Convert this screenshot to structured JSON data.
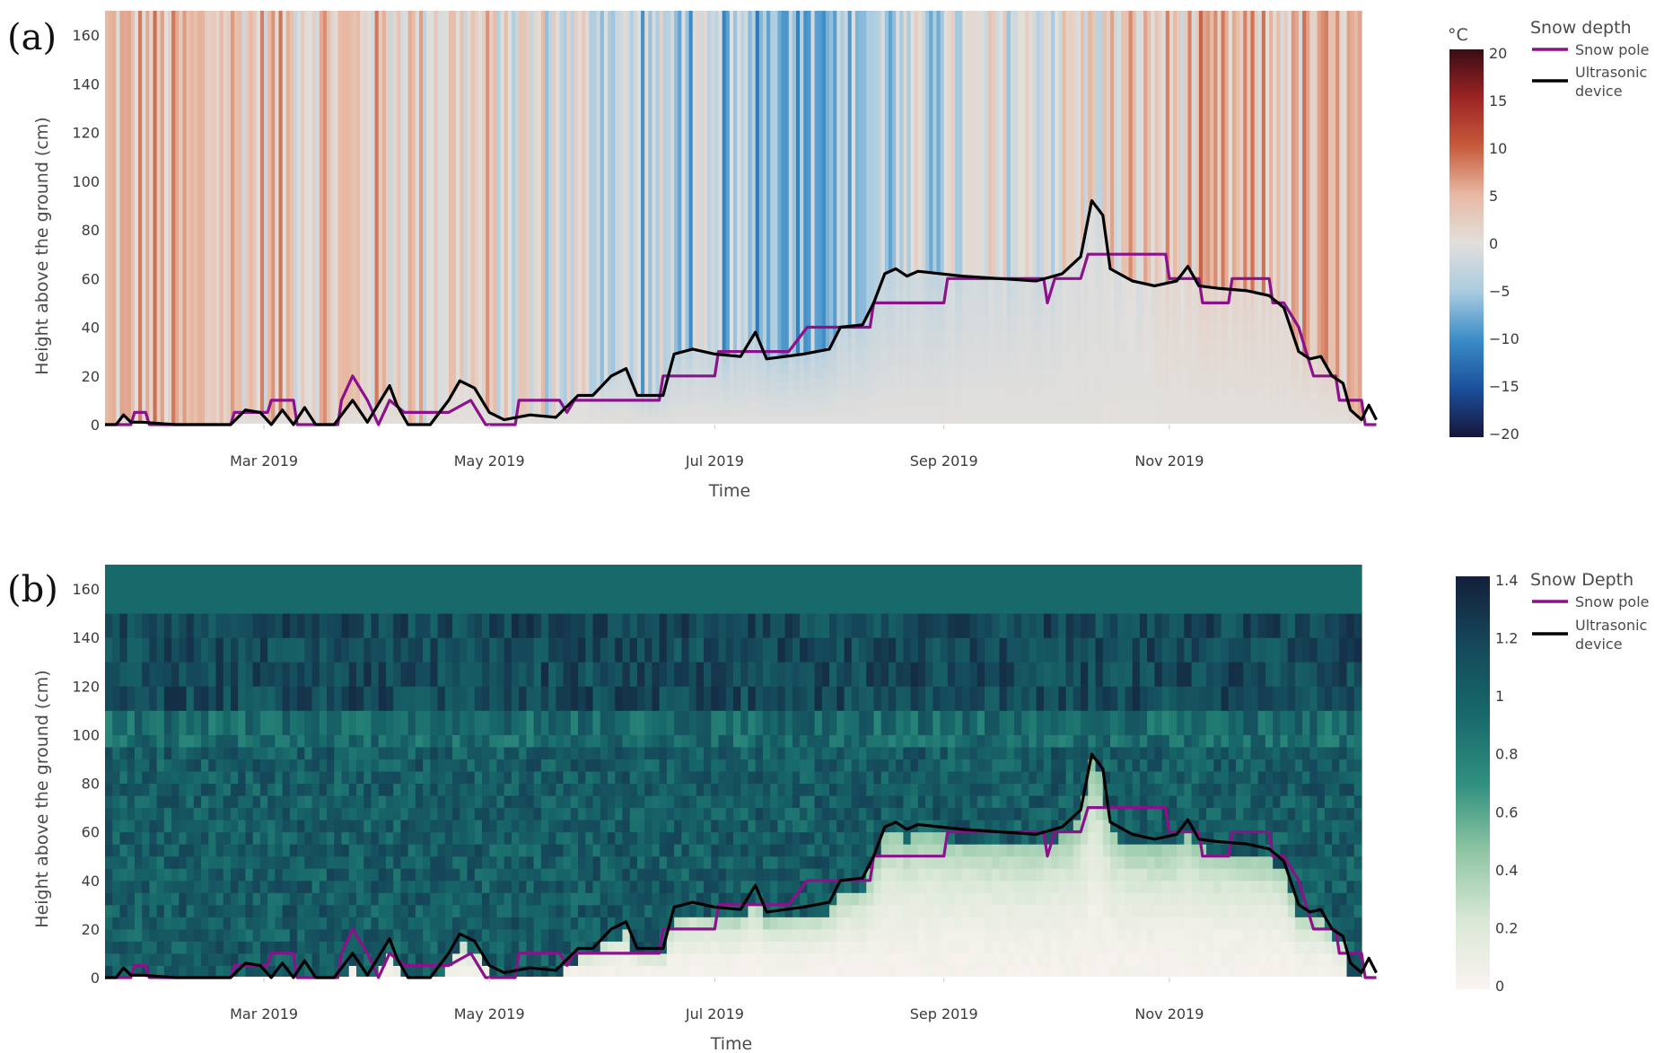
{
  "chart_data": [
    {
      "panel": "(a)",
      "type": "heatmap",
      "xlabel": "Time",
      "ylabel": "Height above the ground (cm)",
      "x_ticks": [
        "Mar 2019",
        "May 2019",
        "Jul 2019",
        "Sep 2019",
        "Nov 2019"
      ],
      "x_range": [
        "2019-01-17",
        "2019-12-23"
      ],
      "y_ticks": [
        0,
        20,
        40,
        60,
        80,
        100,
        120,
        140,
        160
      ],
      "y_range": [
        0,
        170
      ],
      "colorbar": {
        "title": "°C",
        "range": [
          -20,
          20
        ],
        "ticks": [
          "20",
          "15",
          "10",
          "5",
          "0",
          "−5",
          "−10",
          "−15",
          "−20"
        ],
        "colorscale": [
          "#16163a",
          "#1b4f9c",
          "#3a8cc7",
          "#a9cbe0",
          "#e2dfdc",
          "#e8b9a3",
          "#c75b3c",
          "#9c2424",
          "#3a0c14"
        ]
      },
      "legend": {
        "title": "Snow depth",
        "entries": [
          {
            "name": "Snow pole",
            "color": "#8b128b"
          },
          {
            "name": "Ultrasonic device",
            "name_lines": [
              "Ultrasonic",
              "device"
            ],
            "color": "#000000"
          }
        ]
      }
    },
    {
      "panel": "(b)",
      "type": "heatmap",
      "xlabel": "Time",
      "ylabel": "Height above the ground (cm)",
      "x_ticks": [
        "Mar 2019",
        "May 2019",
        "Jul 2019",
        "Sep 2019",
        "Nov 2019"
      ],
      "x_range": [
        "2019-01-17",
        "2019-12-23"
      ],
      "y_ticks": [
        0,
        20,
        40,
        60,
        80,
        100,
        120,
        140,
        160
      ],
      "y_range": [
        0,
        170
      ],
      "colorbar": {
        "range": [
          0,
          1.4
        ],
        "ticks": [
          "1.4",
          "1.2",
          "1",
          "0.8",
          "0.6",
          "0.4",
          "0.2",
          "0"
        ],
        "colorscale": [
          "#fbf3f1",
          "#d9e8d6",
          "#8fc6a4",
          "#2f8f7e",
          "#17686a",
          "#15485a",
          "#141f3a"
        ]
      },
      "legend": {
        "title": "Snow Depth",
        "entries": [
          {
            "name": "Snow pole",
            "color": "#8b128b"
          },
          {
            "name": "Ultrasonic device",
            "name_lines": [
              "Ultrasonic",
              "device"
            ],
            "color": "#000000"
          }
        ]
      }
    }
  ],
  "series": {
    "ultrasonic_device": {
      "name": "Ultrasonic device",
      "points": [
        [
          "2019-01-17",
          0
        ],
        [
          "2019-01-20",
          0
        ],
        [
          "2019-01-22",
          4
        ],
        [
          "2019-01-24",
          1
        ],
        [
          "2019-01-27",
          1
        ],
        [
          "2019-02-05",
          0
        ],
        [
          "2019-02-20",
          0
        ],
        [
          "2019-02-24",
          6
        ],
        [
          "2019-02-28",
          5
        ],
        [
          "2019-03-03",
          0
        ],
        [
          "2019-03-06",
          6
        ],
        [
          "2019-03-09",
          0
        ],
        [
          "2019-03-12",
          7
        ],
        [
          "2019-03-15",
          0
        ],
        [
          "2019-03-20",
          0
        ],
        [
          "2019-03-25",
          10
        ],
        [
          "2019-03-29",
          1
        ],
        [
          "2019-04-02",
          11
        ],
        [
          "2019-04-04",
          16
        ],
        [
          "2019-04-06",
          8
        ],
        [
          "2019-04-09",
          0
        ],
        [
          "2019-04-15",
          0
        ],
        [
          "2019-04-20",
          10
        ],
        [
          "2019-04-23",
          18
        ],
        [
          "2019-04-27",
          15
        ],
        [
          "2019-05-01",
          5
        ],
        [
          "2019-05-05",
          2
        ],
        [
          "2019-05-12",
          4
        ],
        [
          "2019-05-19",
          3
        ],
        [
          "2019-05-25",
          12
        ],
        [
          "2019-05-29",
          12
        ],
        [
          "2019-06-03",
          20
        ],
        [
          "2019-06-07",
          23
        ],
        [
          "2019-06-10",
          12
        ],
        [
          "2019-06-17",
          12
        ],
        [
          "2019-06-20",
          29
        ],
        [
          "2019-06-25",
          31
        ],
        [
          "2019-07-01",
          29
        ],
        [
          "2019-07-08",
          28
        ],
        [
          "2019-07-12",
          38
        ],
        [
          "2019-07-15",
          27
        ],
        [
          "2019-07-25",
          29
        ],
        [
          "2019-08-01",
          31
        ],
        [
          "2019-08-04",
          40
        ],
        [
          "2019-08-10",
          41
        ],
        [
          "2019-08-13",
          50
        ],
        [
          "2019-08-16",
          62
        ],
        [
          "2019-08-19",
          64
        ],
        [
          "2019-08-22",
          61
        ],
        [
          "2019-08-25",
          63
        ],
        [
          "2019-09-06",
          61
        ],
        [
          "2019-09-16",
          60
        ],
        [
          "2019-09-26",
          59
        ],
        [
          "2019-10-03",
          62
        ],
        [
          "2019-10-08",
          69
        ],
        [
          "2019-10-11",
          92
        ],
        [
          "2019-10-14",
          86
        ],
        [
          "2019-10-16",
          64
        ],
        [
          "2019-10-22",
          59
        ],
        [
          "2019-10-28",
          57
        ],
        [
          "2019-11-03",
          59
        ],
        [
          "2019-11-06",
          65
        ],
        [
          "2019-11-09",
          57
        ],
        [
          "2019-11-14",
          56
        ],
        [
          "2019-11-22",
          55
        ],
        [
          "2019-11-28",
          53
        ],
        [
          "2019-12-02",
          48
        ],
        [
          "2019-12-06",
          30
        ],
        [
          "2019-12-09",
          27
        ],
        [
          "2019-12-12",
          28
        ],
        [
          "2019-12-15",
          20
        ],
        [
          "2019-12-18",
          17
        ],
        [
          "2019-12-20",
          6
        ],
        [
          "2019-12-23",
          2
        ],
        [
          "2019-12-25",
          8
        ],
        [
          "2019-12-27",
          2
        ]
      ]
    },
    "snow_pole": {
      "name": "Snow pole",
      "points": [
        [
          "2019-01-17",
          0
        ],
        [
          "2019-01-24",
          0
        ],
        [
          "2019-01-25",
          5
        ],
        [
          "2019-01-28",
          5
        ],
        [
          "2019-01-29",
          0
        ],
        [
          "2019-02-20",
          0
        ],
        [
          "2019-02-21",
          5
        ],
        [
          "2019-03-02",
          5
        ],
        [
          "2019-03-03",
          10
        ],
        [
          "2019-03-09",
          10
        ],
        [
          "2019-03-10",
          0
        ],
        [
          "2019-03-21",
          0
        ],
        [
          "2019-03-22",
          10
        ],
        [
          "2019-03-25",
          20
        ],
        [
          "2019-03-29",
          10
        ],
        [
          "2019-04-01",
          0
        ],
        [
          "2019-04-04",
          10
        ],
        [
          "2019-04-08",
          5
        ],
        [
          "2019-04-16",
          5
        ],
        [
          "2019-04-20",
          5
        ],
        [
          "2019-04-26",
          10
        ],
        [
          "2019-04-30",
          0
        ],
        [
          "2019-05-08",
          0
        ],
        [
          "2019-05-09",
          10
        ],
        [
          "2019-05-20",
          10
        ],
        [
          "2019-05-22",
          5
        ],
        [
          "2019-05-24",
          10
        ],
        [
          "2019-06-16",
          10
        ],
        [
          "2019-06-17",
          20
        ],
        [
          "2019-07-01",
          20
        ],
        [
          "2019-07-02",
          30
        ],
        [
          "2019-07-21",
          30
        ],
        [
          "2019-07-26",
          40
        ],
        [
          "2019-08-12",
          40
        ],
        [
          "2019-08-13",
          50
        ],
        [
          "2019-09-01",
          50
        ],
        [
          "2019-09-02",
          60
        ],
        [
          "2019-09-28",
          60
        ],
        [
          "2019-09-29",
          50
        ],
        [
          "2019-10-01",
          60
        ],
        [
          "2019-10-08",
          60
        ],
        [
          "2019-10-10",
          70
        ],
        [
          "2019-10-31",
          70
        ],
        [
          "2019-11-01",
          60
        ],
        [
          "2019-11-09",
          60
        ],
        [
          "2019-11-10",
          50
        ],
        [
          "2019-11-17",
          50
        ],
        [
          "2019-11-18",
          60
        ],
        [
          "2019-11-28",
          60
        ],
        [
          "2019-11-29",
          50
        ],
        [
          "2019-12-02",
          50
        ],
        [
          "2019-12-06",
          40
        ],
        [
          "2019-12-08",
          30
        ],
        [
          "2019-12-10",
          20
        ],
        [
          "2019-12-16",
          20
        ],
        [
          "2019-12-17",
          10
        ],
        [
          "2019-12-23",
          10
        ],
        [
          "2019-12-24",
          0
        ],
        [
          "2019-12-27",
          0
        ]
      ]
    }
  }
}
